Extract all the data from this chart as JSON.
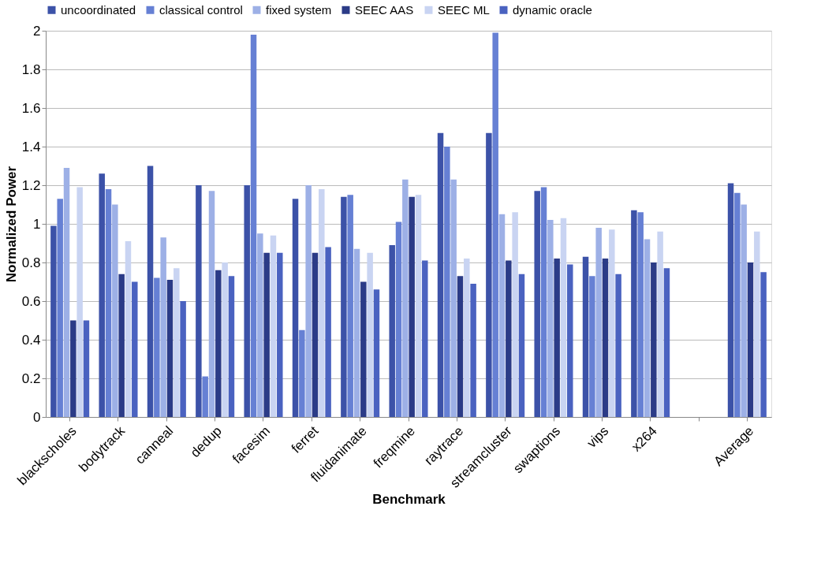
{
  "chart_data": {
    "type": "bar",
    "xlabel": "Benchmark",
    "ylabel": "Normalized Power",
    "categories": [
      "blackscholes",
      "bodytrack",
      "canneal",
      "dedup",
      "facesim",
      "ferret",
      "fluidanimate",
      "freqmine",
      "raytrace",
      "streamcluster",
      "swaptions",
      "vips",
      "x264",
      null,
      "Average"
    ],
    "series": [
      {
        "name": "uncoordinated",
        "color": "#3c52a8",
        "values": [
          0.99,
          1.26,
          1.3,
          1.2,
          1.2,
          1.13,
          1.14,
          0.89,
          1.47,
          1.47,
          1.17,
          0.83,
          1.07,
          null,
          1.21
        ]
      },
      {
        "name": "classical control",
        "color": "#6680d4",
        "values": [
          1.13,
          1.18,
          0.72,
          0.21,
          1.98,
          0.45,
          1.15,
          1.01,
          1.4,
          1.99,
          1.19,
          0.73,
          1.06,
          null,
          1.16
        ]
      },
      {
        "name": "fixed system",
        "color": "#9db0e6",
        "values": [
          1.29,
          1.1,
          0.93,
          1.17,
          0.95,
          1.2,
          0.87,
          1.23,
          1.23,
          1.05,
          1.02,
          0.98,
          0.92,
          null,
          1.1
        ]
      },
      {
        "name": "SEEC AAS",
        "color": "#2b3b87",
        "values": [
          0.5,
          0.74,
          0.71,
          0.76,
          0.85,
          0.85,
          0.7,
          1.14,
          0.73,
          0.81,
          0.82,
          0.82,
          0.8,
          null,
          0.8
        ]
      },
      {
        "name": "SEEC ML",
        "color": "#c9d4f2",
        "values": [
          1.19,
          0.91,
          0.77,
          0.8,
          0.94,
          1.18,
          0.85,
          1.15,
          0.82,
          1.06,
          1.03,
          0.97,
          0.96,
          null,
          0.96
        ]
      },
      {
        "name": "dynamic oracle",
        "color": "#4a62c0",
        "values": [
          0.5,
          0.7,
          0.6,
          0.73,
          0.85,
          0.88,
          0.66,
          0.81,
          0.69,
          0.74,
          0.79,
          0.74,
          0.77,
          null,
          0.75
        ]
      }
    ],
    "ylim": [
      0,
      2
    ],
    "yticks": [
      0,
      0.2,
      0.4,
      0.6,
      0.8,
      1,
      1.2,
      1.4,
      1.6,
      1.8,
      2
    ],
    "grid": "y",
    "legend": "top"
  }
}
